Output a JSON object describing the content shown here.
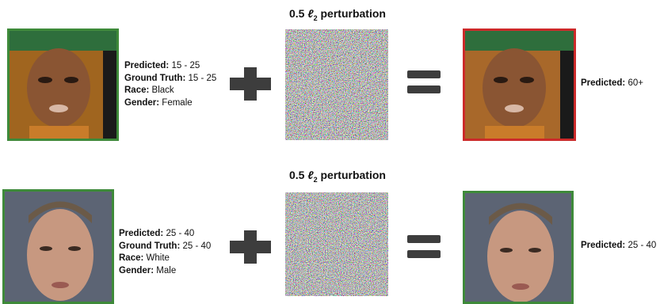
{
  "rows": [
    {
      "perturbation": {
        "amount": "0.5",
        "symbol": "ℓ",
        "subscript": "2",
        "word": "perturbation"
      },
      "input_labels": [
        {
          "key": "Predicted:",
          "value": "15 - 25"
        },
        {
          "key": "Ground Truth:",
          "value": "15 - 25"
        },
        {
          "key": "Race:",
          "value": "Black"
        },
        {
          "key": "Gender:",
          "value": "Female"
        }
      ],
      "output_labels": [
        {
          "key": "Predicted:",
          "value": "60+"
        }
      ]
    },
    {
      "perturbation": {
        "amount": "0.5",
        "symbol": "ℓ",
        "subscript": "2",
        "word": "perturbation"
      },
      "input_labels": [
        {
          "key": "Predicted:",
          "value": "25 - 40"
        },
        {
          "key": "Ground Truth:",
          "value": "25 - 40"
        },
        {
          "key": "Race:",
          "value": "White"
        },
        {
          "key": "Gender:",
          "value": "Male"
        }
      ],
      "output_labels": [
        {
          "key": "Predicted:",
          "value": "25 - 40"
        }
      ]
    }
  ]
}
